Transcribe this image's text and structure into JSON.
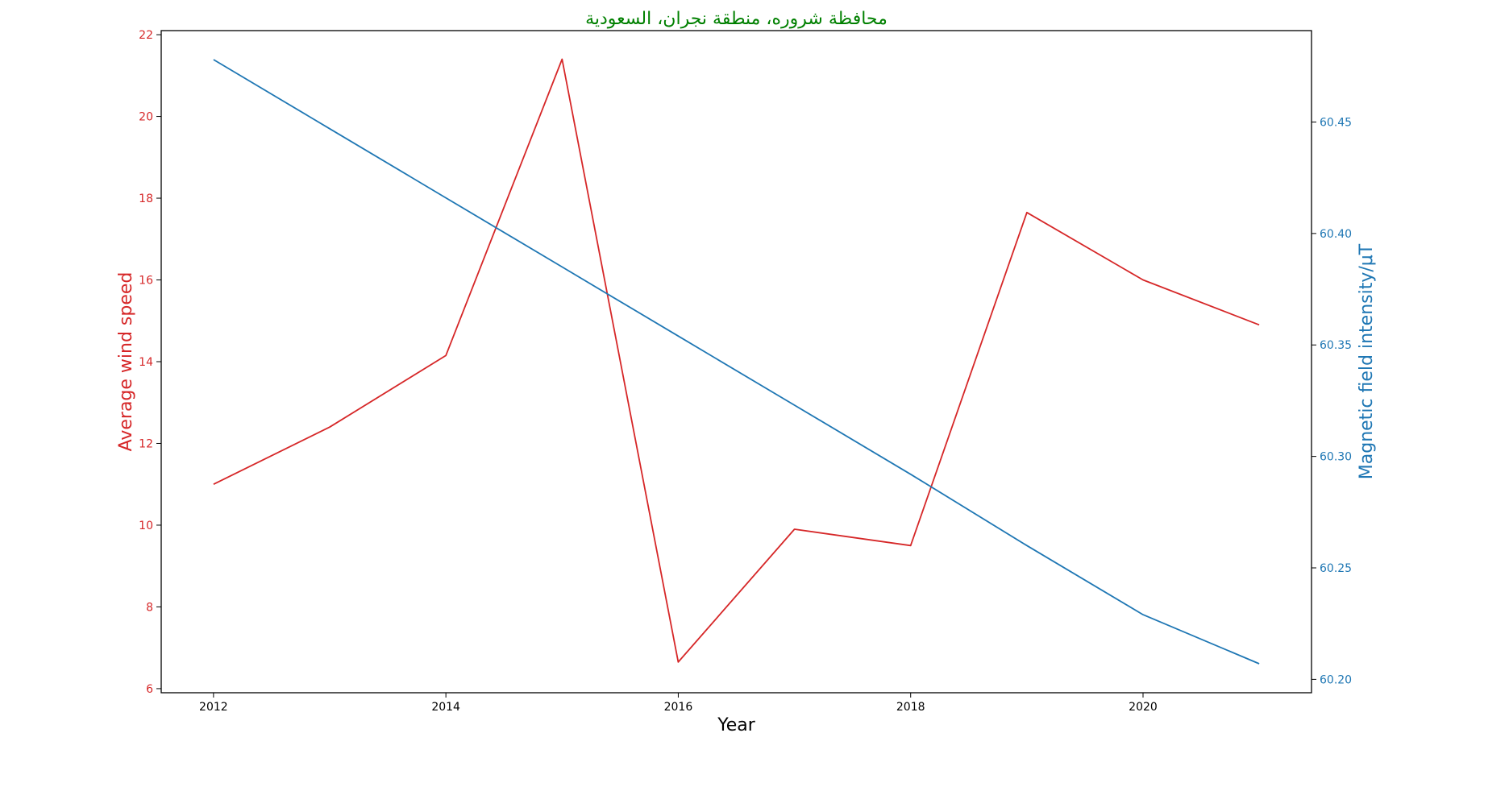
{
  "chart_data": {
    "type": "line",
    "title": "محافظة شروره، منطقة نجران، السعودية",
    "xlabel": "Year",
    "ylabel_left": "Average wind speed",
    "ylabel_right": "Magnetic field intensity/μT",
    "x": [
      2012,
      2013,
      2014,
      2015,
      2016,
      2017,
      2018,
      2019,
      2020,
      2021
    ],
    "x_ticks": [
      "2012",
      "2014",
      "2016",
      "2018",
      "2020"
    ],
    "y_left_ticks": [
      "6",
      "8",
      "10",
      "12",
      "14",
      "16",
      "18",
      "20",
      "22"
    ],
    "y_right_ticks": [
      "60.20",
      "60.25",
      "60.30",
      "60.35",
      "60.40",
      "60.45"
    ],
    "xlim": [
      2011.55,
      2021.45
    ],
    "ylim_left": [
      5.9,
      22.1
    ],
    "ylim_right": [
      60.194,
      60.491
    ],
    "grid": false,
    "series": [
      {
        "name": "Average wind speed",
        "axis": "left",
        "color": "#d62728",
        "values": [
          11.0,
          12.4,
          14.15,
          21.4,
          6.65,
          9.9,
          9.5,
          17.65,
          16.0,
          14.9
        ]
      },
      {
        "name": "Magnetic field intensity/μT",
        "axis": "right",
        "color": "#1f77b4",
        "values": [
          60.478,
          60.447,
          60.416,
          60.385,
          60.354,
          60.323,
          60.292,
          60.26,
          60.229,
          60.207
        ]
      }
    ],
    "colors": {
      "title": "#008000",
      "left_axis": "#d62728",
      "right_axis": "#1f77b4",
      "axis_line": "#000000"
    }
  }
}
